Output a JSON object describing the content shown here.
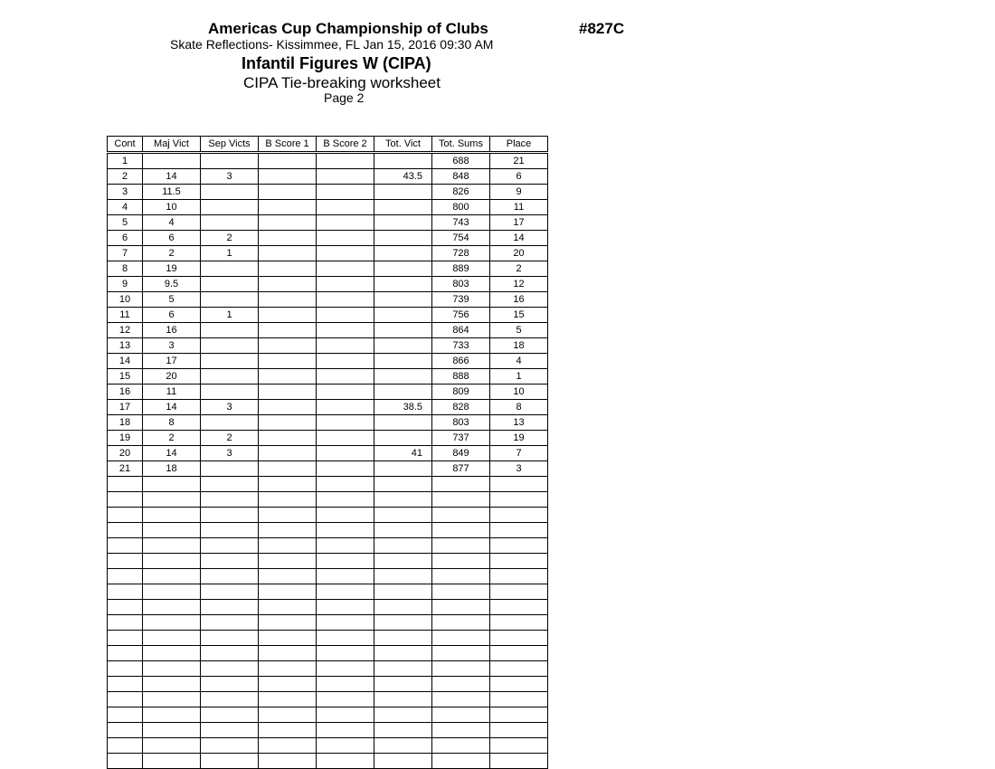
{
  "header": {
    "title": "Americas Cup Championship of Clubs",
    "code": "#827C",
    "subtitle": "Skate Reflections- Kissimmee, FL  Jan 15, 2016  09:30 AM",
    "event": "Infantil Figures W (CIPA)",
    "worksheet": "CIPA Tie-breaking worksheet",
    "page": "Page 2"
  },
  "table": {
    "columns": [
      "Cont",
      "Maj Vict",
      "Sep Victs",
      "B Score 1",
      "B Score 2",
      "Tot. Vict",
      "Tot. Sums",
      "Place"
    ],
    "rows": [
      [
        "1",
        "",
        "",
        "",
        "",
        "",
        "688",
        "21"
      ],
      [
        "2",
        "14",
        "3",
        "",
        "",
        "43.5",
        "848",
        "6"
      ],
      [
        "3",
        "11.5",
        "",
        "",
        "",
        "",
        "826",
        "9"
      ],
      [
        "4",
        "10",
        "",
        "",
        "",
        "",
        "800",
        "11"
      ],
      [
        "5",
        "4",
        "",
        "",
        "",
        "",
        "743",
        "17"
      ],
      [
        "6",
        "6",
        "2",
        "",
        "",
        "",
        "754",
        "14"
      ],
      [
        "7",
        "2",
        "1",
        "",
        "",
        "",
        "728",
        "20"
      ],
      [
        "8",
        "19",
        "",
        "",
        "",
        "",
        "889",
        "2"
      ],
      [
        "9",
        "9.5",
        "",
        "",
        "",
        "",
        "803",
        "12"
      ],
      [
        "10",
        "5",
        "",
        "",
        "",
        "",
        "739",
        "16"
      ],
      [
        "11",
        "6",
        "1",
        "",
        "",
        "",
        "756",
        "15"
      ],
      [
        "12",
        "16",
        "",
        "",
        "",
        "",
        "864",
        "5"
      ],
      [
        "13",
        "3",
        "",
        "",
        "",
        "",
        "733",
        "18"
      ],
      [
        "14",
        "17",
        "",
        "",
        "",
        "",
        "866",
        "4"
      ],
      [
        "15",
        "20",
        "",
        "",
        "",
        "",
        "888",
        "1"
      ],
      [
        "16",
        "11",
        "",
        "",
        "",
        "",
        "809",
        "10"
      ],
      [
        "17",
        "14",
        "3",
        "",
        "",
        "38.5",
        "828",
        "8"
      ],
      [
        "18",
        "8",
        "",
        "",
        "",
        "",
        "803",
        "13"
      ],
      [
        "19",
        "2",
        "2",
        "",
        "",
        "",
        "737",
        "19"
      ],
      [
        "20",
        "14",
        "3",
        "",
        "",
        "41",
        "849",
        "7"
      ],
      [
        "21",
        "18",
        "",
        "",
        "",
        "",
        "877",
        "3"
      ]
    ]
  }
}
